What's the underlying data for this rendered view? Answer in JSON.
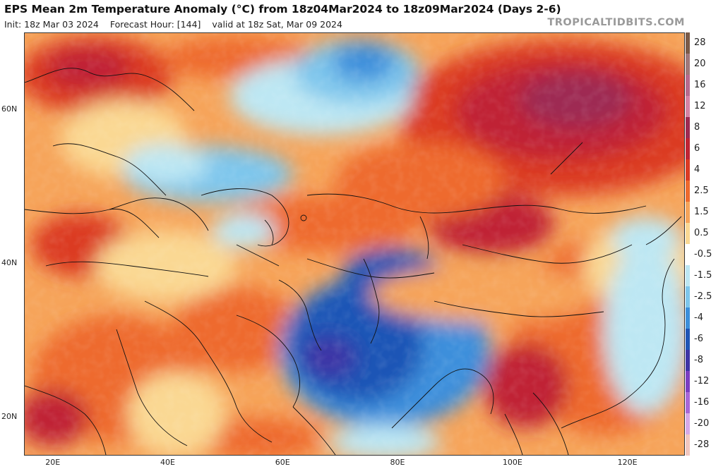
{
  "header": {
    "title": "EPS Mean 2m Temperature Anomaly (°C) from 18z04Mar2024 to 18z09Mar2024 (Days 2-6)",
    "init": "Init: 18z Mar 03 2024",
    "forecast_hour": "Forecast Hour: [144]",
    "valid": "valid at 18z Sat, Mar 09 2024",
    "brand": "TROPICALTIDBITS.COM"
  },
  "axes": {
    "lat_labels": [
      {
        "text": "60N",
        "lat": 60
      },
      {
        "text": "40N",
        "lat": 40
      },
      {
        "text": "20N",
        "lat": 20
      }
    ],
    "lon_labels": [
      {
        "text": "20E",
        "lon": 20
      },
      {
        "text": "40E",
        "lon": 40
      },
      {
        "text": "60E",
        "lon": 60
      },
      {
        "text": "80E",
        "lon": 80
      },
      {
        "text": "100E",
        "lon": 100
      },
      {
        "text": "120E",
        "lon": 120
      }
    ]
  },
  "colorbar": {
    "unit": "°C",
    "levels": [
      {
        "label": "28",
        "color": "#7a5a48"
      },
      {
        "label": "20",
        "color": "#a0787a"
      },
      {
        "label": "16",
        "color": "#b76a8e"
      },
      {
        "label": "12",
        "color": "#d583a5"
      },
      {
        "label": "8",
        "color": "#9e2a52"
      },
      {
        "label": "6",
        "color": "#c02434"
      },
      {
        "label": "4",
        "color": "#db3a24"
      },
      {
        "label": "2.5",
        "color": "#ee6a2e"
      },
      {
        "label": "1.5",
        "color": "#f6a45a"
      },
      {
        "label": "0.5",
        "color": "#fad893"
      },
      {
        "label": "-0.5",
        "color": "#ffffff"
      },
      {
        "label": "-1.5",
        "color": "#bde7f3"
      },
      {
        "label": "-2.5",
        "color": "#7ec6ec"
      },
      {
        "label": "-4",
        "color": "#3d8fdb"
      },
      {
        "label": "-6",
        "color": "#1f55b6"
      },
      {
        "label": "-8",
        "color": "#3e34a6"
      },
      {
        "label": "-12",
        "color": "#7b3fc2"
      },
      {
        "label": "-16",
        "color": "#a868d8"
      },
      {
        "label": "-20",
        "color": "#d6a9e8"
      },
      {
        "label": "-28",
        "color": "#f1c7c0"
      }
    ]
  },
  "map_extent": {
    "lon_min": 15,
    "lon_max": 130,
    "lat_min": 15,
    "lat_max": 70
  }
}
